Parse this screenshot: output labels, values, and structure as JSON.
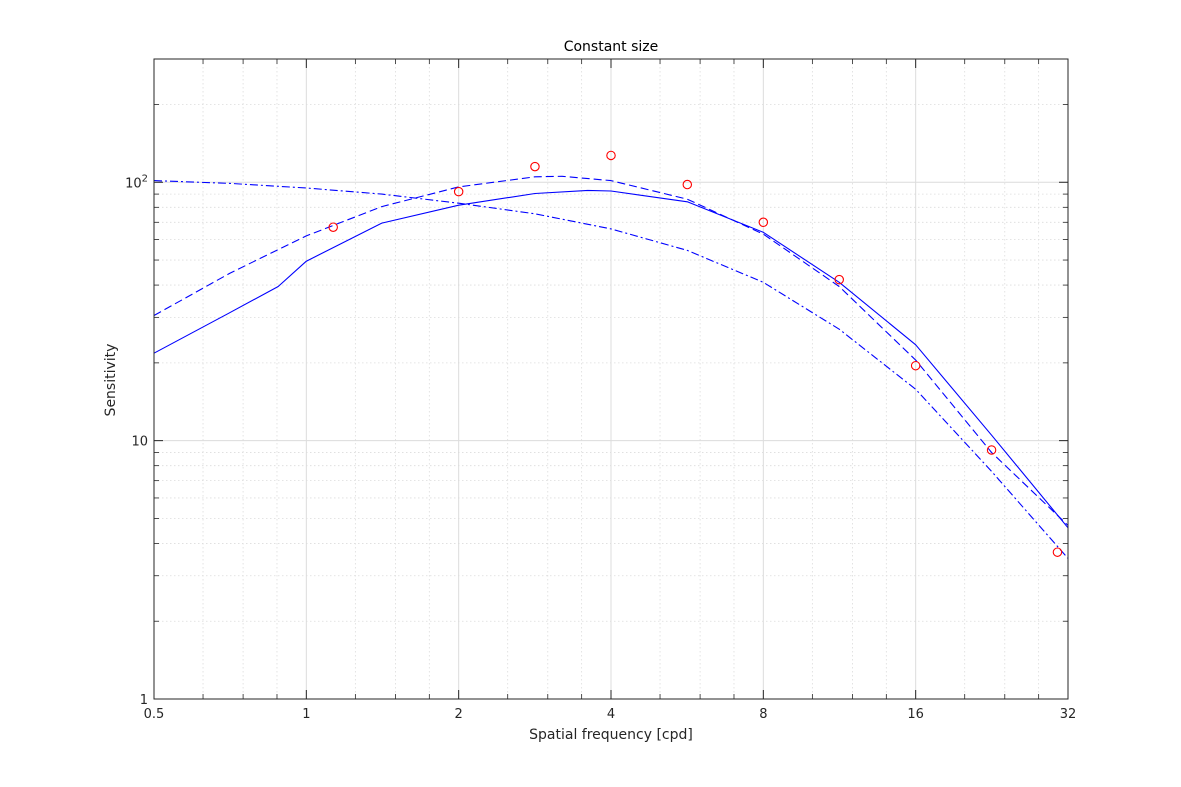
{
  "chart_data": {
    "type": "line",
    "title": "Constant size",
    "xlabel": "Spatial frequency [cpd]",
    "ylabel": "Sensitivity",
    "xscale": "log2",
    "yscale": "log10",
    "xlim": [
      0.5,
      32
    ],
    "ylim": [
      1,
      300
    ],
    "x_ticks": [
      0.5,
      1,
      2,
      4,
      8,
      16,
      32
    ],
    "x_tick_labels": [
      "0.5",
      "1",
      "2",
      "4",
      "8",
      "16",
      "32"
    ],
    "y_ticks": [
      1,
      10,
      100
    ],
    "y_tick_labels": [
      {
        "base": "1",
        "exp": ""
      },
      {
        "base": "10",
        "exp": ""
      },
      {
        "base": "10",
        "exp": "2"
      }
    ],
    "grid": true,
    "minor_grid": true,
    "legend": "none",
    "series": [
      {
        "style": "solid",
        "color": "#0000ff",
        "x": [
          0.5,
          0.7,
          0.88,
          1.0,
          1.41,
          2.0,
          2.83,
          3.6,
          4.0,
          5.66,
          8.0,
          11.3,
          16.0,
          22.6,
          32.0
        ],
        "y": [
          21.8,
          31,
          39.5,
          49.5,
          69.5,
          81.5,
          90.5,
          93,
          92.5,
          84,
          64,
          41,
          23.5,
          10.5,
          4.6
        ]
      },
      {
        "style": "dashed",
        "color": "#0000ff",
        "x": [
          0.5,
          0.707,
          1.0,
          1.41,
          2.0,
          2.83,
          3.2,
          4.0,
          5.66,
          8.0,
          11.3,
          16.0,
          22.6,
          32.0
        ],
        "y": [
          30.5,
          44.5,
          62,
          80.5,
          96,
          105,
          105.5,
          101.5,
          86,
          63,
          39.5,
          20.5,
          9,
          4.7
        ]
      },
      {
        "style": "dashdot",
        "color": "#0000ff",
        "x": [
          0.5,
          0.707,
          1.0,
          1.41,
          2.0,
          2.83,
          4.0,
          5.66,
          8.0,
          11.3,
          16.0,
          22.6,
          32.0
        ],
        "y": [
          101.5,
          99,
          95,
          90,
          83,
          75.5,
          66,
          54.5,
          41,
          27,
          15.8,
          7.6,
          3.5
        ]
      },
      {
        "style": "markers",
        "marker": "circle",
        "color": "#ff0000",
        "x": [
          1.13,
          2.0,
          2.83,
          4.0,
          5.66,
          8.0,
          11.3,
          16.0,
          22.6,
          30.5
        ],
        "y": [
          67,
          92,
          115,
          127,
          98,
          70,
          42,
          19.5,
          9.2,
          3.7
        ]
      }
    ]
  },
  "colors": {
    "line": "#0000ff",
    "markers": "#ff0000",
    "grid": "#dcdcdc",
    "axes": "#262626"
  }
}
